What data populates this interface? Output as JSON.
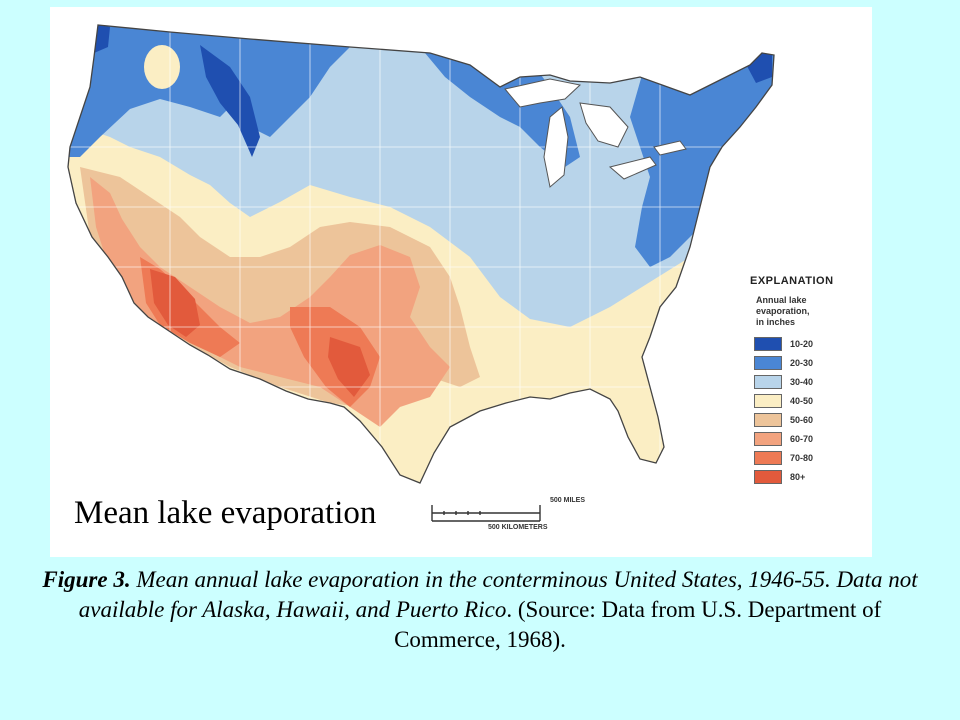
{
  "map": {
    "label": "Mean lake evaporation",
    "colors": {
      "water": "#ffffff",
      "band_10_20": "#1f4fb0",
      "band_20_30": "#4a86d4",
      "band_30_40": "#b8d4ea",
      "band_40_50": "#fbeec4",
      "band_50_60": "#edc49a",
      "band_60_70": "#f2a37f",
      "band_70_80": "#ee7a55",
      "band_80": "#e25a3c"
    }
  },
  "legend": {
    "title": "EXPLANATION",
    "subtitle_1": "Annual lake",
    "subtitle_2": "evaporation,",
    "subtitle_3": "in inches",
    "items": [
      {
        "range": "10-20",
        "color": "#1f4fb0"
      },
      {
        "range": "20-30",
        "color": "#4a86d4"
      },
      {
        "range": "30-40",
        "color": "#b8d4ea"
      },
      {
        "range": "40-50",
        "color": "#fbeec4"
      },
      {
        "range": "50-60",
        "color": "#edc49a"
      },
      {
        "range": "60-70",
        "color": "#f2a37f"
      },
      {
        "range": "70-80",
        "color": "#ee7a55"
      },
      {
        "range": "80+",
        "color": "#e25a3c"
      }
    ]
  },
  "scale": {
    "miles": "500 MILES",
    "kilometers": "500 KILOMETERS"
  },
  "caption": {
    "figure": "Figure 3.",
    "italic": " Mean annual lake evaporation in the conterminous United States, 1946-55. Data not available for Alaska, Hawaii, and Puerto Rico",
    "tail": ". (Source: Data from U.S. Department of Commerce, 1968)."
  }
}
